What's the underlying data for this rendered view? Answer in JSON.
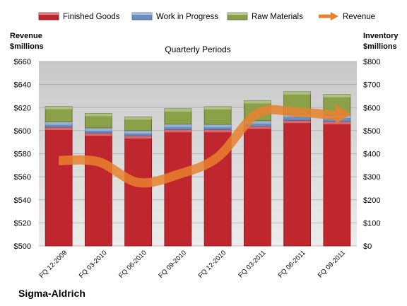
{
  "chart_data": {
    "type": "bar",
    "title": "Quarterly Periods",
    "company": "Sigma-Aldrich",
    "left_axis": {
      "title_line1": "Revenue",
      "title_line2": "$millions",
      "ylim": [
        500,
        660
      ],
      "ticks": [
        "$500",
        "$520",
        "$540",
        "$560",
        "$580",
        "$600",
        "$620",
        "$640",
        "$660"
      ]
    },
    "right_axis": {
      "title_line1": "Inventory",
      "title_line2": "$millions",
      "ylim": [
        0,
        800
      ],
      "ticks": [
        "$0",
        "$100",
        "$200",
        "$300",
        "$400",
        "$500",
        "$600",
        "$700",
        "$800"
      ]
    },
    "categories": [
      "FQ 12-2009",
      "FQ 03-2010",
      "FQ 06-2010",
      "FQ 09-2010",
      "FQ 12-2010",
      "FQ 03-2011",
      "FQ 06-2011",
      "FQ 09-2011"
    ],
    "series": [
      {
        "name": "Finished Goods",
        "axis": "right",
        "kind": "stacked-bar",
        "color": "#c0262d",
        "values": [
          515,
          490,
          478,
          505,
          505,
          520,
          545,
          540
        ]
      },
      {
        "name": "Work in Progress",
        "axis": "right",
        "kind": "stacked-bar",
        "color": "#6b8ec2",
        "values": [
          23,
          22,
          22,
          23,
          22,
          23,
          27,
          27
        ]
      },
      {
        "name": "Raw Materials",
        "axis": "right",
        "kind": "stacked-bar",
        "color": "#8aa14a",
        "values": [
          67,
          63,
          60,
          67,
          77,
          87,
          97,
          90
        ]
      },
      {
        "name": "Revenue",
        "axis": "left",
        "kind": "arrow-line",
        "color": "#e8812e",
        "values": [
          574,
          573,
          555,
          562,
          577,
          615,
          616,
          613
        ]
      }
    ],
    "legend_position": "top",
    "grid": true
  }
}
